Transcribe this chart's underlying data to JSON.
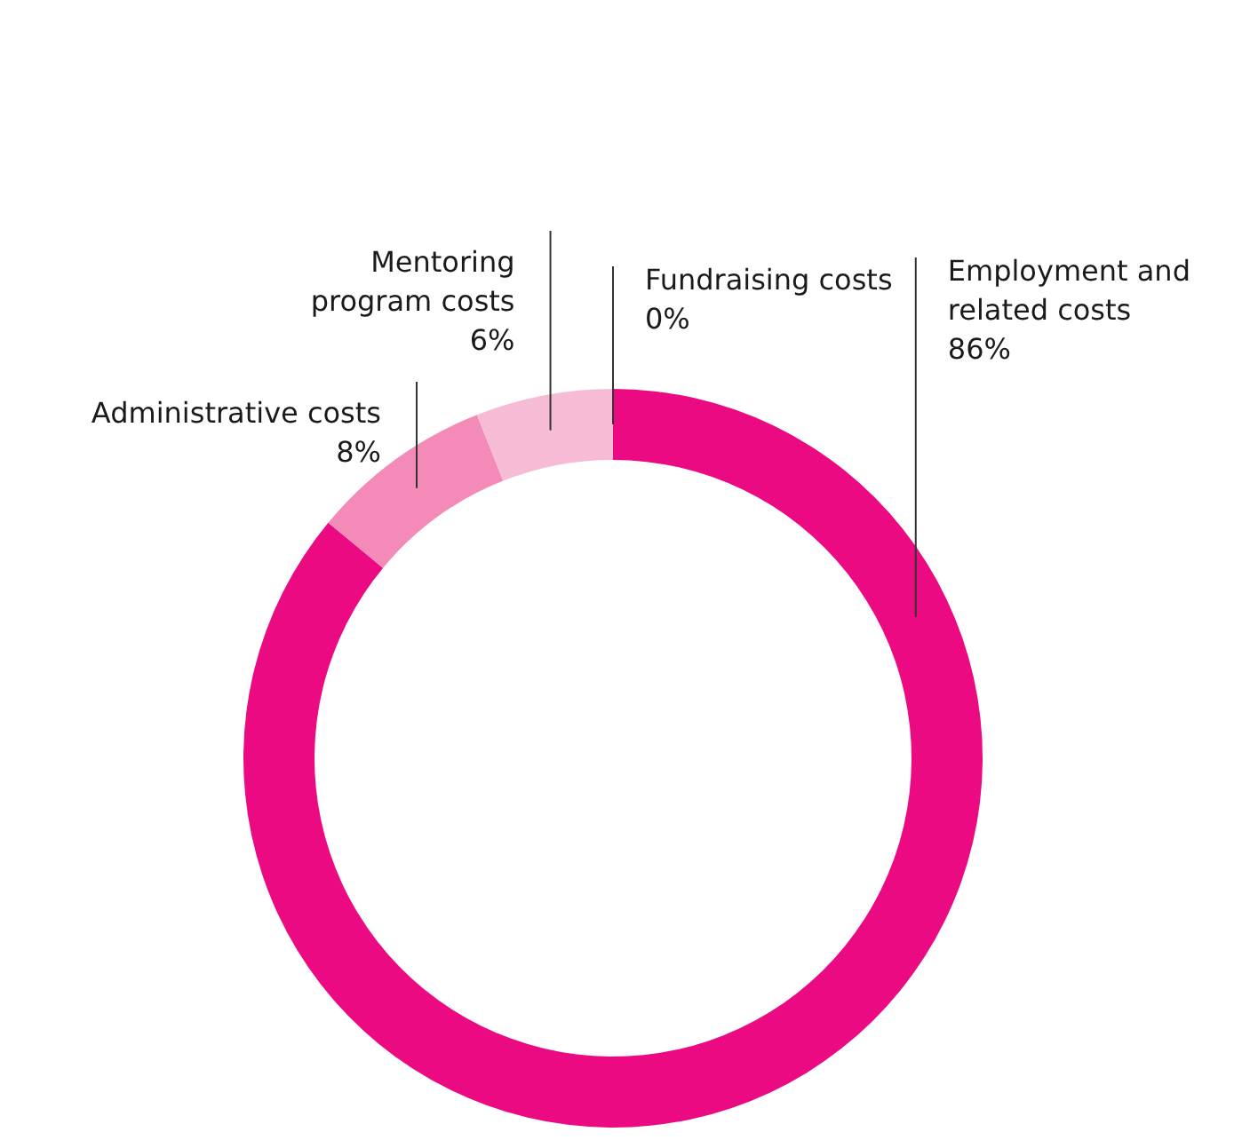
{
  "chart_data": {
    "type": "donut",
    "categories": [
      "Employment and\nrelated costs",
      "Administrative costs",
      "Mentoring\nprogram costs",
      "Fundraising costs"
    ],
    "values": [
      86,
      8,
      6,
      0
    ],
    "value_labels": [
      "86%",
      "8%",
      "6%",
      "0%"
    ],
    "colors": [
      "#ec0a83",
      "#f38ab7",
      "#f6bcd6",
      "#fbe3ee"
    ]
  }
}
